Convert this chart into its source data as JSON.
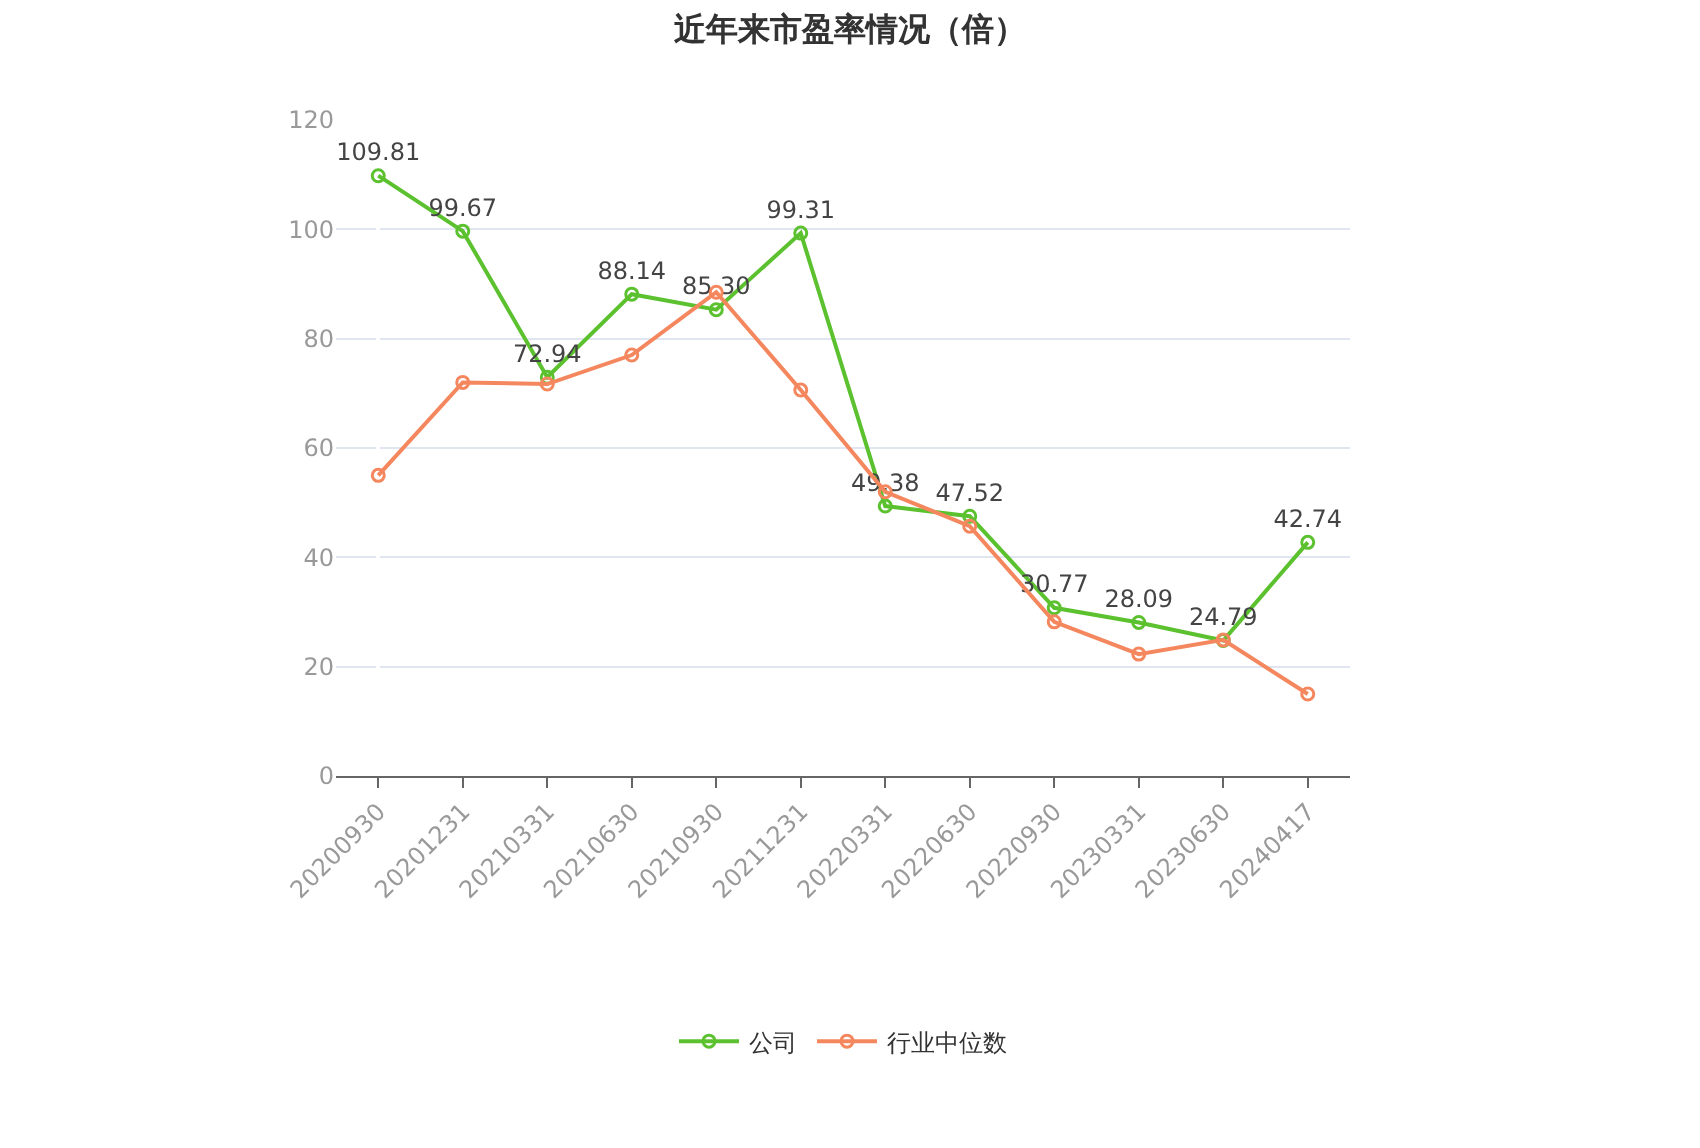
{
  "chart_data": {
    "type": "line",
    "title": "近年来市盈率情况（倍）",
    "categories": [
      "20200930",
      "20201231",
      "20210331",
      "20210630",
      "20210930",
      "20211231",
      "20220331",
      "20220630",
      "20220930",
      "20230331",
      "20230630",
      "20240417"
    ],
    "series": [
      {
        "name": "公司",
        "color": "#5cc12f",
        "values": [
          109.81,
          99.67,
          72.94,
          88.14,
          85.3,
          99.31,
          49.38,
          47.52,
          30.77,
          28.09,
          24.79,
          42.74
        ],
        "value_labels": [
          "109.81",
          "99.67",
          "72.94",
          "88.14",
          "85.30",
          "99.31",
          "49.38",
          "47.52",
          "30.77",
          "28.09",
          "24.79",
          "42.74"
        ]
      },
      {
        "name": "行业中位数",
        "color": "#f5875f",
        "values": [
          55,
          72,
          71.7,
          77,
          88.5,
          70.6,
          52,
          45.7,
          28.2,
          22.3,
          24.9,
          15
        ]
      }
    ],
    "ylim": [
      0,
      120
    ],
    "yticks": [
      0,
      20,
      40,
      60,
      80,
      100,
      120
    ],
    "grid": "y",
    "legend": "bottom",
    "marker": "circle",
    "line_style": "solid"
  }
}
